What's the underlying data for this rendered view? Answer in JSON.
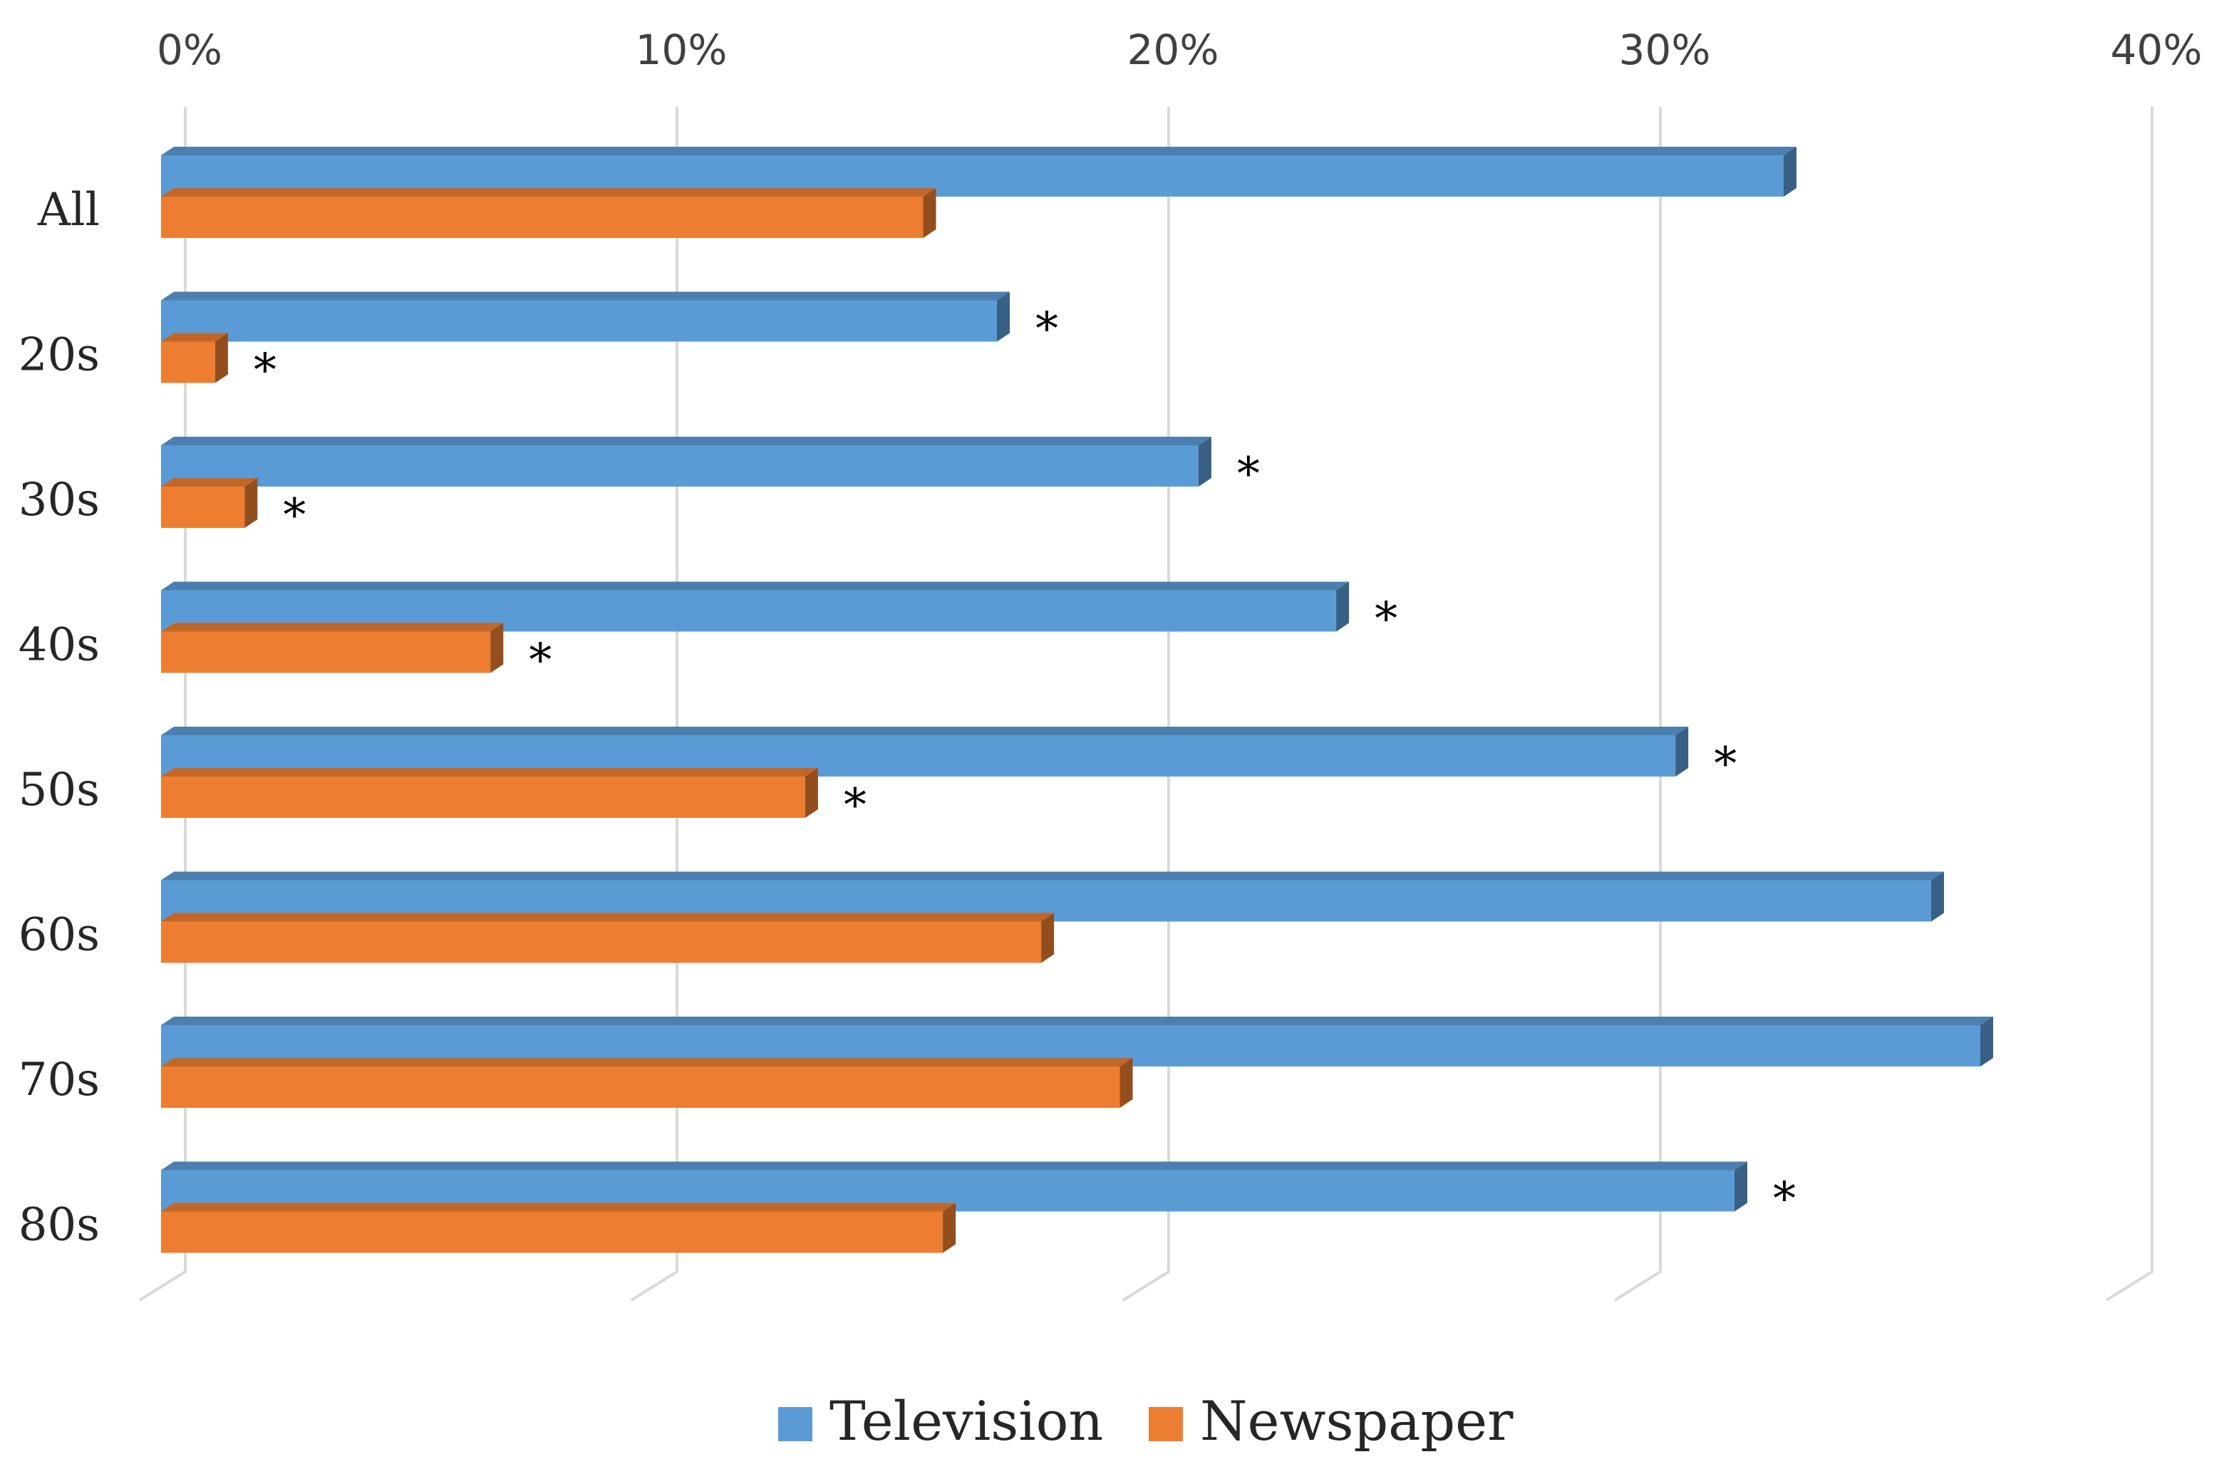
{
  "chart_data": {
    "type": "bar",
    "orientation": "horizontal",
    "title": "",
    "xlabel": "",
    "ylabel": "",
    "xlim": [
      0,
      40
    ],
    "x_ticks": [
      "0%",
      "10%",
      "20%",
      "30%",
      "40%"
    ],
    "categories": [
      "All",
      "20s",
      "30s",
      "40s",
      "50s",
      "60s",
      "70s",
      "80s"
    ],
    "series": [
      {
        "name": "Television",
        "color": "#5B9BD5",
        "values": [
          33.0,
          17.0,
          21.1,
          23.9,
          30.8,
          36.0,
          37.0,
          32.0
        ],
        "markers": [
          "",
          "*",
          "*",
          "*",
          "*",
          "",
          "",
          "*"
        ]
      },
      {
        "name": "Newspaper",
        "color": "#ED7D31",
        "values": [
          15.5,
          1.1,
          1.7,
          6.7,
          13.1,
          17.9,
          19.5,
          15.9
        ],
        "markers": [
          "",
          "*",
          "*",
          "*",
          "*",
          "",
          "",
          ""
        ]
      }
    ],
    "grid": true,
    "legend_position": "bottom"
  }
}
